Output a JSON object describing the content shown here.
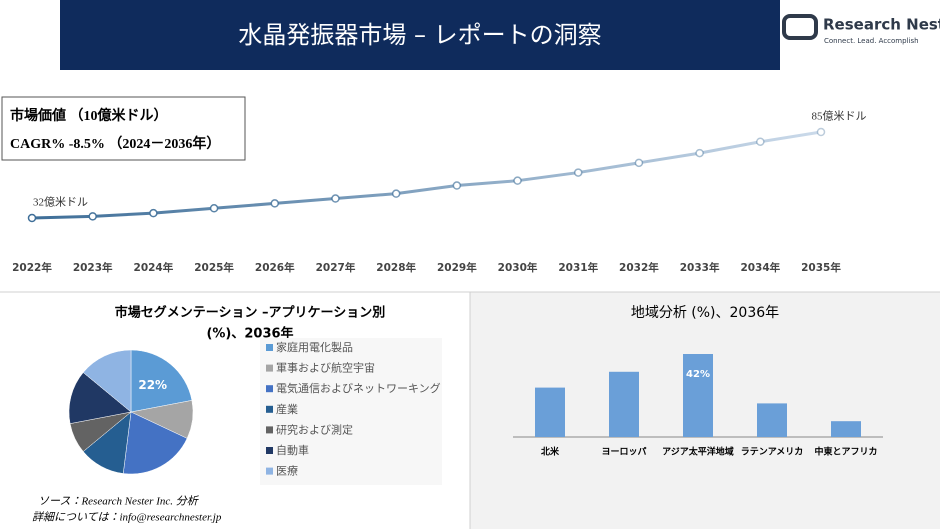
{
  "header": {
    "title": "水晶発振器市場 – レポートの洞察",
    "logo_name": "Research Nester",
    "logo_tagline": "Connect. Lead. Accomplish"
  },
  "chart_data": [
    {
      "type": "line",
      "annotations": [
        "市場価値 （10億米ドル）",
        "CAGR% -8.5% （2024－2036年）"
      ],
      "categories": [
        "2022年",
        "2023年",
        "2024年",
        "2025年",
        "2026年",
        "2027年",
        "2028年",
        "2029年",
        "2030年",
        "2031年",
        "2032年",
        "2033年",
        "2034年",
        "2035年"
      ],
      "values": [
        32,
        33,
        35,
        38,
        41,
        44,
        47,
        52,
        55,
        60,
        66,
        72,
        79,
        85
      ],
      "value_labels": [
        "32億米ドル",
        null,
        null,
        null,
        null,
        null,
        null,
        null,
        null,
        null,
        null,
        null,
        null,
        "85億米ドル"
      ],
      "colors": [
        "#3e6e98",
        "#cbdaea"
      ]
    },
    {
      "type": "pie",
      "title": [
        "市場セグメンテーション –アプリケーション別",
        "(%)、2036年"
      ],
      "categories": [
        "家庭用電化製品",
        "軍事および航空宇宙",
        "電気通信およびネットワーキング",
        "産業",
        "研究および測定",
        "自動車",
        "医療"
      ],
      "values": [
        22,
        10,
        20,
        12,
        8,
        14,
        14
      ],
      "value_labels": [
        "22%",
        null,
        null,
        null,
        null,
        null,
        null
      ],
      "colors": [
        "#5b9bd5",
        "#a5a5a5",
        "#4472c4",
        "#255e91",
        "#636363",
        "#203864",
        "#8fb4e3"
      ]
    },
    {
      "type": "bar",
      "title": "地域分析 (%)、2036年",
      "categories": [
        "北米",
        "ヨーロッパ",
        "アジア太平洋地域",
        "ラテンアメリカ",
        "中東とアフリカ"
      ],
      "values": [
        25,
        33,
        42,
        17,
        8
      ],
      "value_labels": [
        null,
        null,
        "42%",
        null,
        null
      ],
      "color": "#6a9fd8"
    }
  ],
  "source": [
    "ソース：Research Nester Inc. 分析",
    "詳細については：info@researchnester.jp"
  ]
}
